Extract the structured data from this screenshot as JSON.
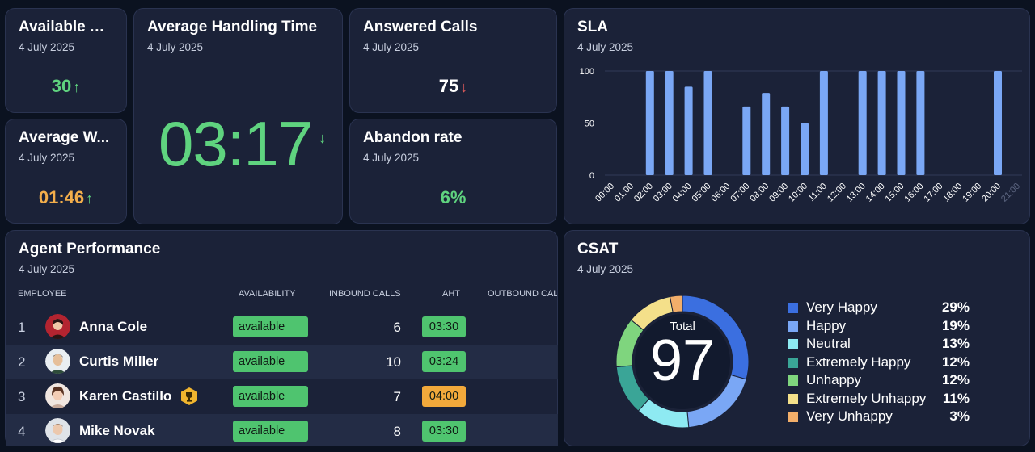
{
  "colors": {
    "green": "#5fd37f",
    "orange": "#f3ae4b",
    "red": "#e25c5c",
    "bar": "#7aa7f5"
  },
  "available_agents": {
    "title": "Available A...",
    "date": "4 July 2025",
    "value": "30",
    "trend_icon": "arrow-up-icon"
  },
  "average_wait": {
    "title": "Average W...",
    "date": "4 July 2025",
    "value": "01:46",
    "trend_icon": "arrow-up-icon"
  },
  "aht": {
    "title": "Average Handling Time",
    "date": "4 July 2025",
    "value": "03:17",
    "trend_icon": "arrow-down-icon"
  },
  "answered_calls": {
    "title": "Answered Calls",
    "date": "4 July 2025",
    "value": "75",
    "trend_icon": "arrow-down-icon"
  },
  "abandon_rate": {
    "title": "Abandon rate",
    "date": "4 July 2025",
    "value": "6%"
  },
  "sla": {
    "title": "SLA",
    "date": "4 July 2025"
  },
  "chart_data": {
    "type": "bar",
    "title": "SLA",
    "categories": [
      "00:00",
      "01:00",
      "02:00",
      "03:00",
      "04:00",
      "05:00",
      "06:00",
      "07:00",
      "08:00",
      "09:00",
      "10:00",
      "11:00",
      "12:00",
      "13:00",
      "14:00",
      "15:00",
      "16:00",
      "17:00",
      "18:00",
      "19:00",
      "20:00",
      "21:00"
    ],
    "values": [
      0,
      0,
      100,
      100,
      85,
      100,
      0,
      66,
      79,
      66,
      50,
      100,
      0,
      100,
      100,
      100,
      100,
      0,
      0,
      0,
      100,
      0
    ],
    "ylim": [
      0,
      100
    ],
    "yticks": [
      0,
      50,
      100
    ],
    "xlabel": "",
    "ylabel": ""
  },
  "agent_performance": {
    "title": "Agent Performance",
    "date": "4 July 2025",
    "columns": [
      "EMPLOYEE",
      "AVAILABILITY",
      "INBOUND CALLS",
      "AHT",
      "OUTBOUND CAL"
    ],
    "rows": [
      {
        "rank": "1",
        "name": "Anna Cole",
        "availability": "available",
        "inbound": "6",
        "aht": "03:30",
        "aht_status": "ok"
      },
      {
        "rank": "2",
        "name": "Curtis Miller",
        "availability": "available",
        "inbound": "10",
        "aht": "03:24",
        "aht_status": "ok"
      },
      {
        "rank": "3",
        "name": "Karen Castillo",
        "availability": "available",
        "inbound": "7",
        "aht": "04:00",
        "aht_status": "warn",
        "badge_icon": "trophy-icon"
      },
      {
        "rank": "4",
        "name": "Mike Novak",
        "availability": "available",
        "inbound": "8",
        "aht": "03:30",
        "aht_status": "ok"
      }
    ]
  },
  "csat": {
    "title": "CSAT",
    "date": "4 July 2025",
    "total_label": "Total",
    "total_value": "97",
    "segments": [
      {
        "label": "Very Happy",
        "percent": "29%",
        "value": 29,
        "color": "#3b6fe0"
      },
      {
        "label": "Happy",
        "percent": "19%",
        "value": 19,
        "color": "#7aa7f5"
      },
      {
        "label": "Neutral",
        "percent": "13%",
        "value": 13,
        "color": "#8eeaf2"
      },
      {
        "label": "Extremely Happy",
        "percent": "12%",
        "value": 12,
        "color": "#3aa597"
      },
      {
        "label": "Unhappy",
        "percent": "12%",
        "value": 12,
        "color": "#7fd57e"
      },
      {
        "label": "Extremely Unhappy",
        "percent": "11%",
        "value": 11,
        "color": "#f4e08a"
      },
      {
        "label": "Very Unhappy",
        "percent": "3%",
        "value": 3,
        "color": "#f2ae6a"
      }
    ]
  }
}
